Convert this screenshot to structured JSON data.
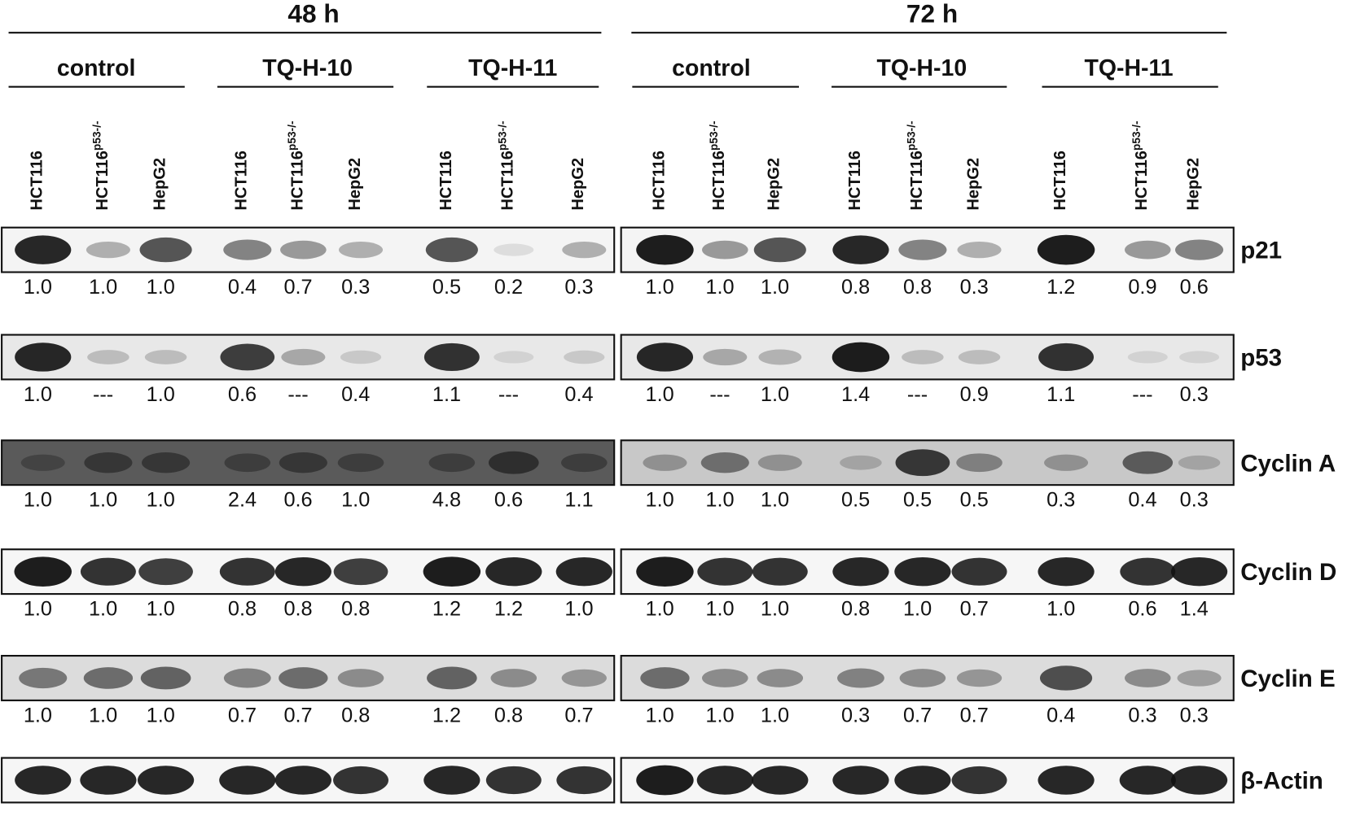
{
  "header": {
    "time_points": [
      {
        "label": "48 h",
        "treatments": [
          "control",
          "TQ-H-10",
          "TQ-H-11"
        ]
      },
      {
        "label": "72 h",
        "treatments": [
          "control",
          "TQ-H-10",
          "TQ-H-11"
        ]
      }
    ]
  },
  "lanes": [
    {
      "name": "HCT116"
    },
    {
      "name": "HCT116",
      "superscript": "p53-/-"
    },
    {
      "name": "HepG2"
    }
  ],
  "blots": [
    {
      "protein": "p21",
      "values": [
        "1.0",
        "1.0",
        "1.0",
        "0.4",
        "0.7",
        "0.3",
        "0.5",
        "0.2",
        "0.3",
        "1.0",
        "1.0",
        "1.0",
        "0.8",
        "0.8",
        "0.3",
        "1.2",
        "0.9",
        "0.6"
      ]
    },
    {
      "protein": "p53",
      "values": [
        "1.0",
        "---",
        "1.0",
        "0.6",
        "---",
        "0.4",
        "1.1",
        "---",
        "0.4",
        "1.0",
        "---",
        "1.0",
        "1.4",
        "---",
        "0.9",
        "1.1",
        "---",
        "0.3"
      ]
    },
    {
      "protein": "Cyclin A",
      "values": [
        "1.0",
        "1.0",
        "1.0",
        "2.4",
        "0.6",
        "1.0",
        "4.8",
        "0.6",
        "1.1",
        "1.0",
        "1.0",
        "1.0",
        "0.5",
        "0.5",
        "0.5",
        "0.3",
        "0.4",
        "0.3"
      ]
    },
    {
      "protein": "Cyclin D",
      "values": [
        "1.0",
        "1.0",
        "1.0",
        "0.8",
        "0.8",
        "0.8",
        "1.2",
        "1.2",
        "1.0",
        "1.0",
        "1.0",
        "1.0",
        "0.8",
        "1.0",
        "0.7",
        "1.0",
        "0.6",
        "1.4"
      ]
    },
    {
      "protein": "Cyclin E",
      "values": [
        "1.0",
        "1.0",
        "1.0",
        "0.7",
        "0.7",
        "0.8",
        "1.2",
        "0.8",
        "0.7",
        "1.0",
        "1.0",
        "1.0",
        "0.3",
        "0.7",
        "0.7",
        "0.4",
        "0.3",
        "0.3"
      ]
    },
    {
      "protein": "β-Actin"
    }
  ]
}
